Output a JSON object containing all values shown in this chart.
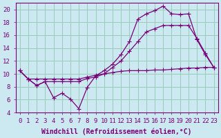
{
  "xlabel": "Windchill (Refroidissement éolien,°C)",
  "bg_color": "#cce8f0",
  "grid_color": "#99ccbb",
  "line_color": "#770077",
  "xlim": [
    -0.5,
    23.5
  ],
  "ylim": [
    4,
    21
  ],
  "xticks": [
    0,
    1,
    2,
    3,
    4,
    5,
    6,
    7,
    8,
    9,
    10,
    11,
    12,
    13,
    14,
    15,
    16,
    17,
    18,
    19,
    20,
    21,
    22,
    23
  ],
  "yticks": [
    4,
    6,
    8,
    10,
    12,
    14,
    16,
    18,
    20
  ],
  "line1_x": [
    0,
    1,
    2,
    3,
    4,
    5,
    6,
    7,
    8,
    9,
    10,
    11,
    12,
    13,
    14,
    15,
    16,
    17,
    18,
    19,
    20,
    21,
    22,
    23
  ],
  "line1_y": [
    10.5,
    9.2,
    8.2,
    8.8,
    6.3,
    7.0,
    6.1,
    4.6,
    7.9,
    9.7,
    10.5,
    11.5,
    13.0,
    15.0,
    18.5,
    19.3,
    19.8,
    20.5,
    19.3,
    19.2,
    19.3,
    15.3,
    13.0,
    11.0
  ],
  "line2_x": [
    0,
    1,
    2,
    3,
    4,
    5,
    6,
    7,
    8,
    9,
    10,
    11,
    12,
    13,
    14,
    15,
    16,
    17,
    18,
    19,
    20,
    21,
    22,
    23
  ],
  "line2_y": [
    10.5,
    9.2,
    8.2,
    8.8,
    8.8,
    8.8,
    8.8,
    8.8,
    9.3,
    9.5,
    10.0,
    11.0,
    12.0,
    13.5,
    15.0,
    16.5,
    17.0,
    17.5,
    17.5,
    17.5,
    17.5,
    15.5,
    13.2,
    11.0
  ],
  "line3_x": [
    0,
    1,
    2,
    3,
    4,
    5,
    6,
    7,
    8,
    9,
    10,
    11,
    12,
    13,
    14,
    15,
    16,
    17,
    18,
    19,
    20,
    21,
    22,
    23
  ],
  "line3_y": [
    10.5,
    9.2,
    9.2,
    9.2,
    9.2,
    9.2,
    9.2,
    9.2,
    9.5,
    9.8,
    10.0,
    10.2,
    10.4,
    10.5,
    10.5,
    10.5,
    10.6,
    10.6,
    10.7,
    10.8,
    10.9,
    10.9,
    11.0,
    11.0
  ],
  "font_size": 7,
  "marker_size": 2.5,
  "tick_label_size": 6.5
}
